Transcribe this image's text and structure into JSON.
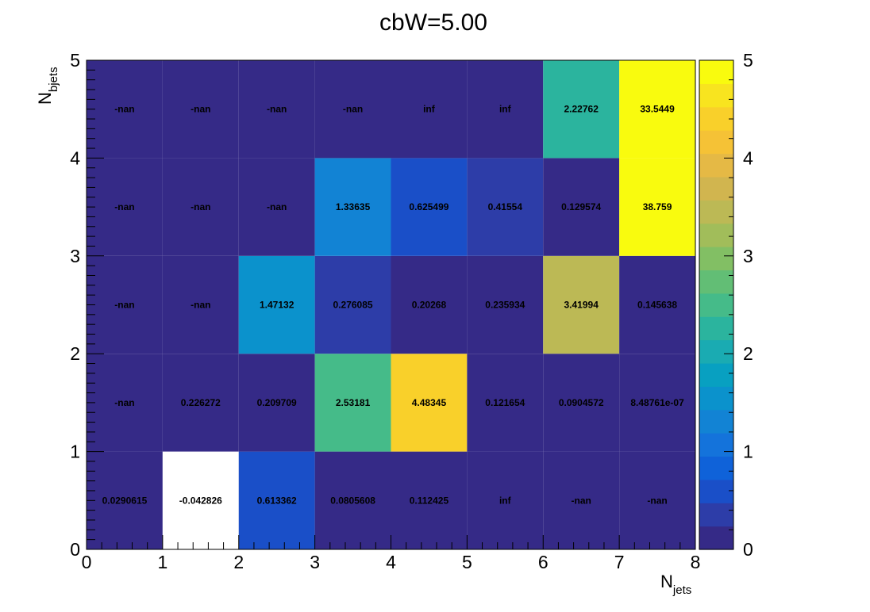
{
  "chart_data": {
    "type": "heatmap",
    "title": "cbW=5.00",
    "xlabel": {
      "main": "N",
      "sub": "jets"
    },
    "ylabel": {
      "main": "N",
      "sub": "bjets"
    },
    "xlim": [
      0,
      8
    ],
    "ylim": [
      0,
      5
    ],
    "x_ticks": [
      "0",
      "1",
      "2",
      "3",
      "4",
      "5",
      "6",
      "7",
      "8"
    ],
    "y_ticks": [
      "0",
      "1",
      "2",
      "3",
      "4",
      "5"
    ],
    "colorbar": {
      "range": [
        0,
        5
      ],
      "ticks": [
        "0",
        "1",
        "2",
        "3",
        "4",
        "5"
      ],
      "palette": [
        "#352a87",
        "#2d3da8",
        "#1a4fc8",
        "#0f62d9",
        "#1473db",
        "#1283d4",
        "#0b92cc",
        "#08a0c1",
        "#1aabb2",
        "#2bb49e",
        "#45bb89",
        "#62be75",
        "#82bf64",
        "#a1bd5a",
        "#bcb955",
        "#d1b54f",
        "#e5b945",
        "#f5c236",
        "#f9d02a",
        "#f8e41f",
        "#f9fb0e"
      ]
    },
    "overflow_color": "#f9fb0e",
    "underflow_color": "#ffffff",
    "empty_color": "#352a87",
    "rows": [
      {
        "y_bin": [
          0,
          1
        ],
        "cells": [
          {
            "label": "0.0290615",
            "value": 0.0290615
          },
          {
            "label": "-0.042826",
            "value": -0.042826
          },
          {
            "label": "0.613362",
            "value": 0.613362
          },
          {
            "label": "0.0805608",
            "value": 0.0805608
          },
          {
            "label": "0.112425",
            "value": 0.112425
          },
          {
            "label": "inf",
            "value": null
          },
          {
            "label": "-nan",
            "value": null
          },
          {
            "label": "-nan",
            "value": null
          }
        ]
      },
      {
        "y_bin": [
          1,
          2
        ],
        "cells": [
          {
            "label": "-nan",
            "value": null
          },
          {
            "label": "0.226272",
            "value": 0.226272
          },
          {
            "label": "0.209709",
            "value": 0.209709
          },
          {
            "label": "2.53181",
            "value": 2.53181
          },
          {
            "label": "4.48345",
            "value": 4.48345
          },
          {
            "label": "0.121654",
            "value": 0.121654
          },
          {
            "label": "0.0904572",
            "value": 0.0904572
          },
          {
            "label": "8.48761e-07",
            "value": 8.48761e-07
          }
        ]
      },
      {
        "y_bin": [
          2,
          3
        ],
        "cells": [
          {
            "label": "-nan",
            "value": null
          },
          {
            "label": "-nan",
            "value": null
          },
          {
            "label": "1.47132",
            "value": 1.47132
          },
          {
            "label": "0.276085",
            "value": 0.276085
          },
          {
            "label": "0.20268",
            "value": 0.20268
          },
          {
            "label": "0.235934",
            "value": 0.235934
          },
          {
            "label": "3.41994",
            "value": 3.41994
          },
          {
            "label": "0.145638",
            "value": 0.145638
          }
        ]
      },
      {
        "y_bin": [
          3,
          4
        ],
        "cells": [
          {
            "label": "-nan",
            "value": null
          },
          {
            "label": "-nan",
            "value": null
          },
          {
            "label": "-nan",
            "value": null
          },
          {
            "label": "1.33635",
            "value": 1.33635
          },
          {
            "label": "0.625499",
            "value": 0.625499
          },
          {
            "label": "0.41554",
            "value": 0.41554
          },
          {
            "label": "0.129574",
            "value": 0.129574
          },
          {
            "label": "38.759",
            "value": 38.759
          }
        ]
      },
      {
        "y_bin": [
          4,
          5
        ],
        "cells": [
          {
            "label": "-nan",
            "value": null
          },
          {
            "label": "-nan",
            "value": null
          },
          {
            "label": "-nan",
            "value": null
          },
          {
            "label": "-nan",
            "value": null
          },
          {
            "label": "inf",
            "value": null
          },
          {
            "label": "inf",
            "value": null
          },
          {
            "label": "2.22762",
            "value": 2.22762
          },
          {
            "label": "33.5449",
            "value": 33.5449
          }
        ]
      }
    ],
    "grid": false
  }
}
